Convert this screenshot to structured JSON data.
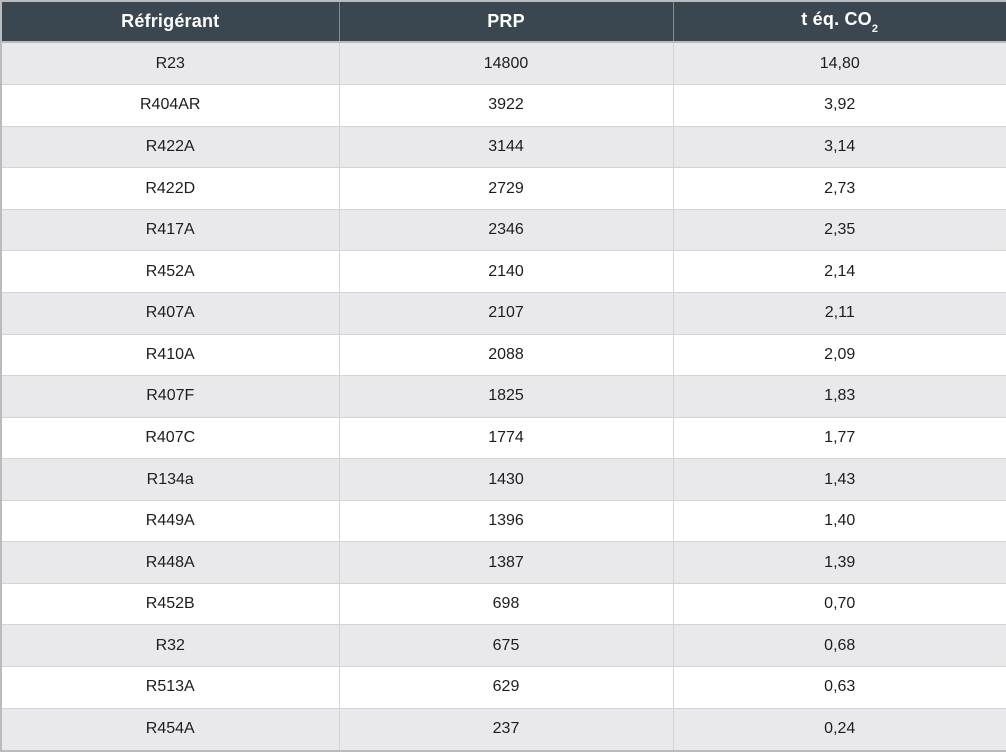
{
  "chart_data": {
    "type": "table",
    "title": "",
    "columns": [
      "Réfrigérant",
      "PRP",
      "t éq. CO2"
    ],
    "rows": [
      [
        "R23",
        "14800",
        "14,80"
      ],
      [
        "R404AR",
        "3922",
        "3,92"
      ],
      [
        "R422A",
        "3144",
        "3,14"
      ],
      [
        "R422D",
        "2729",
        "2,73"
      ],
      [
        "R417A",
        "2346",
        "2,35"
      ],
      [
        "R452A",
        "2140",
        "2,14"
      ],
      [
        "R407A",
        "2107",
        "2,11"
      ],
      [
        "R410A",
        "2088",
        "2,09"
      ],
      [
        "R407F",
        "1825",
        "1,83"
      ],
      [
        "R407C",
        "1774",
        "1,77"
      ],
      [
        "R134a",
        "1430",
        "1,43"
      ],
      [
        "R449A",
        "1396",
        "1,40"
      ],
      [
        "R448A",
        "1387",
        "1,39"
      ],
      [
        "R452B",
        "698",
        "0,70"
      ],
      [
        "R32",
        "675",
        "0,68"
      ],
      [
        "R513A",
        "629",
        "0,63"
      ],
      [
        "R454A",
        "237",
        "0,24"
      ]
    ]
  },
  "header": {
    "col1": "Réfrigérant",
    "col2": "PRP",
    "col3_main": "t éq. CO",
    "col3_sub": "2"
  },
  "colors": {
    "header_bg": "#3a4750",
    "header_text": "#ffffff",
    "row_alt_bg": "#e9e9eb",
    "row_bg": "#ffffff",
    "body_text": "#1b1d1e"
  }
}
